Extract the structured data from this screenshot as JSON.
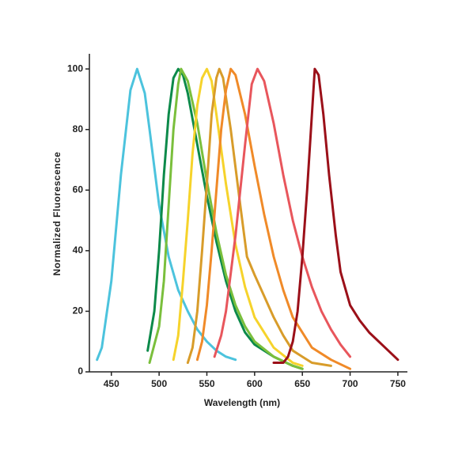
{
  "chart_data": {
    "type": "line",
    "xlabel": "Wavelength (nm)",
    "ylabel": "Normalized  Fluorescence",
    "xlim": [
      427,
      760
    ],
    "ylim": [
      0,
      105
    ],
    "xticks": [
      450,
      500,
      550,
      600,
      650,
      700,
      750
    ],
    "yticks": [
      0,
      20,
      40,
      60,
      80,
      100
    ],
    "series": [
      {
        "color": "#4cc3dd",
        "x": [
          435,
          440,
          450,
          460,
          470,
          477,
          485,
          490,
          500,
          510,
          520,
          530,
          540,
          550,
          560,
          570,
          580
        ],
        "values": [
          4,
          8,
          30,
          65,
          93,
          100,
          92,
          80,
          55,
          38,
          27,
          20,
          14,
          10,
          7,
          5,
          4
        ]
      },
      {
        "color": "#0c8a4a",
        "x": [
          488,
          495,
          500,
          505,
          510,
          515,
          520,
          525,
          530,
          540,
          550,
          560,
          570,
          580,
          590,
          600,
          620,
          640,
          650
        ],
        "values": [
          7,
          20,
          40,
          65,
          85,
          97,
          100,
          98,
          92,
          75,
          58,
          43,
          30,
          20,
          13,
          9,
          5,
          2,
          1
        ]
      },
      {
        "color": "#7abf3c",
        "x": [
          490,
          500,
          505,
          510,
          515,
          520,
          523,
          530,
          540,
          550,
          560,
          570,
          580,
          590,
          600,
          620,
          640,
          650
        ],
        "values": [
          3,
          15,
          30,
          55,
          80,
          95,
          100,
          96,
          82,
          63,
          46,
          32,
          22,
          15,
          10,
          5,
          2,
          1
        ]
      },
      {
        "color": "#f6d32b",
        "x": [
          515,
          520,
          525,
          530,
          535,
          540,
          545,
          550,
          555,
          560,
          570,
          580,
          590,
          600,
          620,
          640,
          650
        ],
        "values": [
          4,
          12,
          30,
          50,
          72,
          88,
          97,
          100,
          96,
          85,
          62,
          42,
          28,
          18,
          8,
          3,
          2
        ]
      },
      {
        "color": "#d89c2a",
        "x": [
          530,
          535,
          540,
          545,
          550,
          555,
          560,
          563,
          567,
          575,
          585,
          592,
          600,
          610,
          620,
          630,
          640,
          660,
          680
        ],
        "values": [
          3,
          8,
          20,
          40,
          62,
          85,
          97,
          100,
          97,
          80,
          55,
          38,
          32,
          25,
          18,
          12,
          7,
          3,
          2
        ]
      },
      {
        "color": "#f08a28",
        "x": [
          540,
          545,
          550,
          555,
          560,
          565,
          570,
          575,
          580,
          590,
          600,
          610,
          620,
          630,
          640,
          660,
          680,
          700
        ],
        "values": [
          4,
          10,
          22,
          40,
          60,
          80,
          93,
          100,
          98,
          85,
          68,
          52,
          38,
          27,
          18,
          8,
          4,
          1
        ]
      },
      {
        "color": "#e8565c",
        "x": [
          558,
          565,
          570,
          580,
          590,
          597,
          603,
          610,
          620,
          630,
          640,
          650,
          660,
          670,
          680,
          690,
          700
        ],
        "values": [
          5,
          12,
          20,
          45,
          75,
          95,
          100,
          96,
          82,
          65,
          50,
          38,
          28,
          20,
          14,
          9,
          5
        ]
      },
      {
        "color": "#9b1019",
        "x": [
          620,
          630,
          635,
          640,
          645,
          650,
          655,
          660,
          663,
          667,
          672,
          678,
          685,
          690,
          700,
          710,
          720,
          740,
          750
        ],
        "values": [
          3,
          3,
          5,
          10,
          20,
          38,
          60,
          85,
          100,
          98,
          85,
          65,
          45,
          33,
          22,
          17,
          13,
          7,
          4
        ]
      }
    ]
  }
}
